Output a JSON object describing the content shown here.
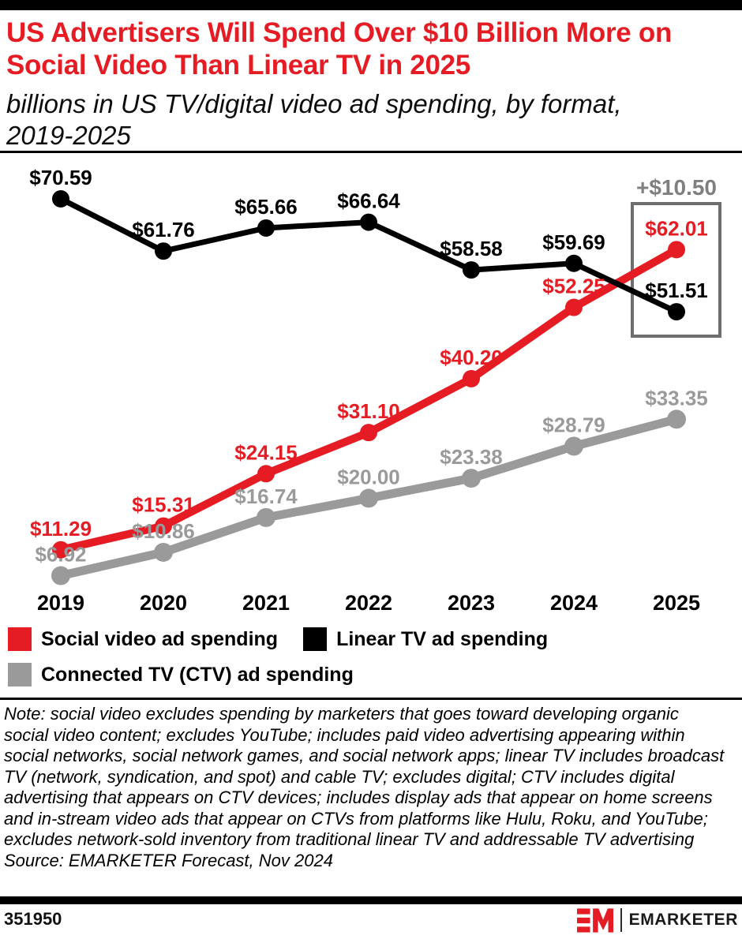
{
  "colors": {
    "accent_red": "#e51c23",
    "black": "#000000",
    "gray_series": "#9a9a9a",
    "annotation_gray": "#7f7f7f",
    "box_gray": "#6e6e6e"
  },
  "header": {
    "title": "US Advertisers Will Spend Over $10 Billion More on Social Video Than Linear TV in 2025",
    "subtitle": "billions in US TV/digital video ad spending, by format, 2019-2025"
  },
  "chart_data": {
    "type": "line",
    "title": "US Advertisers Will Spend Over $10 Billion More on Social Video Than Linear TV in 2025",
    "subtitle": "billions in US TV/digital video ad spending, by format, 2019-2025",
    "x": [
      "2019",
      "2020",
      "2021",
      "2022",
      "2023",
      "2024",
      "2025"
    ],
    "series": [
      {
        "name": "Social video ad spending",
        "color": "#e51c23",
        "values": [
          11.29,
          15.31,
          24.15,
          31.1,
          40.2,
          52.25,
          62.01
        ],
        "labels": [
          "$11.29",
          "$15.31",
          "$24.15",
          "$31.10",
          "$40.20",
          "$52.25",
          "$62.01"
        ]
      },
      {
        "name": "Linear TV ad spending",
        "color": "#000000",
        "values": [
          70.59,
          61.76,
          65.66,
          66.64,
          58.58,
          59.69,
          51.51
        ],
        "labels": [
          "$70.59",
          "$61.76",
          "$65.66",
          "$66.64",
          "$58.58",
          "$59.69",
          "$51.51"
        ]
      },
      {
        "name": "Connected TV (CTV) ad spending",
        "color": "#9a9a9a",
        "values": [
          6.92,
          10.86,
          16.74,
          20.0,
          23.38,
          28.79,
          33.35
        ],
        "labels": [
          "$6.92",
          "$10.86",
          "$16.74",
          "$20.00",
          "$23.38",
          "$28.79",
          "$33.35"
        ]
      }
    ],
    "annotation": {
      "text": "+$10.50",
      "year": "2025",
      "color": "#7f7f7f",
      "box_color": "#6e6e6e"
    },
    "ylim": [
      0,
      80
    ],
    "grid": false,
    "legend_position": "bottom"
  },
  "note": "Note: social video excludes spending by marketers that goes toward developing organic social video content; excludes YouTube; includes paid video advertising appearing within social networks, social network games, and social network apps; linear TV includes broadcast TV (network, syndication, and spot) and cable TV; excludes digital; CTV includes digital advertising that appears on CTV devices; includes display ads that appear on home screens and in-stream video ads that appear on CTVs from platforms like Hulu, Roku, and YouTube; excludes network-sold inventory from traditional linear TV and addressable TV advertising",
  "source": "Source: EMARKETER Forecast, Nov 2024",
  "footer": {
    "chart_id": "351950",
    "brand": "EMARKETER"
  }
}
